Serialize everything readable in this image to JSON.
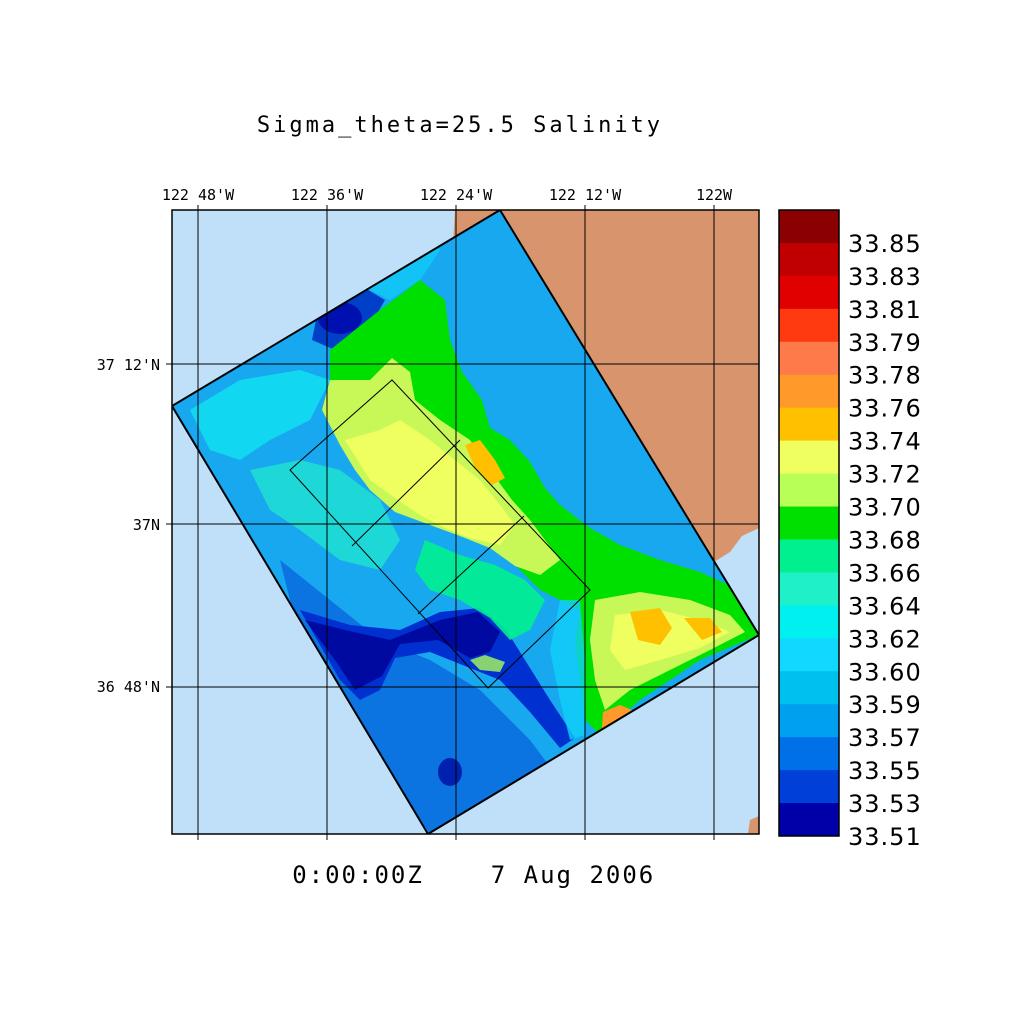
{
  "title": "Sigma_theta=25.5 Salinity",
  "timestamp": {
    "time": "0:00:00Z",
    "date": "7 Aug 2006"
  },
  "longitude_labels": [
    "122 48'W",
    "122 36'W",
    "122 24'W",
    "122 12'W",
    "122W"
  ],
  "latitude_labels": [
    "37 12'N",
    "37N",
    "36 48'N"
  ],
  "colorbar": {
    "levels": [
      "33.85",
      "33.83",
      "33.81",
      "33.79",
      "33.78",
      "33.76",
      "33.74",
      "33.72",
      "33.70",
      "33.68",
      "33.66",
      "33.64",
      "33.62",
      "33.60",
      "33.59",
      "33.57",
      "33.55",
      "33.53",
      "33.51"
    ],
    "colors": [
      "#8b0000",
      "#c00000",
      "#e00000",
      "#ff3a10",
      "#ff7a4a",
      "#ff9a2a",
      "#ffc000",
      "#f0ff60",
      "#b8ff58",
      "#00e000",
      "#00f090",
      "#20f0c8",
      "#00f0f0",
      "#10d8ff",
      "#00c0f0",
      "#00a0f0",
      "#0070e8",
      "#0040d8",
      "#0000a8"
    ]
  },
  "colors": {
    "ocean": "#c0e0fa",
    "land": "#d8946c"
  }
}
